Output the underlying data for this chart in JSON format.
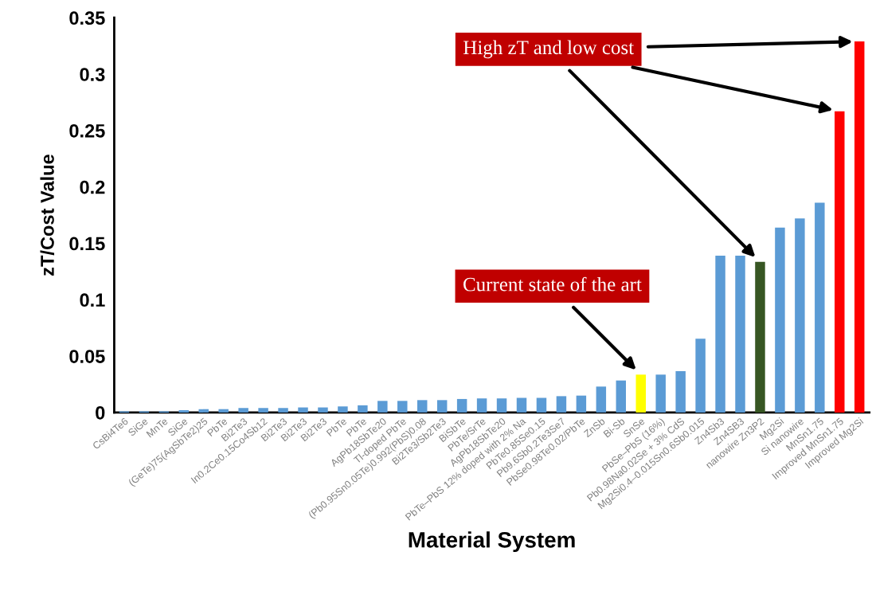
{
  "chart_data": {
    "type": "bar",
    "xlabel": "Material System",
    "ylabel": "zT/Cost Value",
    "categories": [
      "CsBi4Te6",
      "SiGe",
      "MnTe",
      "SiGe",
      "(GeTe)75(AgSbTe2)25",
      "PbTe",
      "Bi2Te3",
      "In0.2Ce0.15Co4Sb12",
      "Bi2Te3",
      "Bi2Te3",
      "Bi2Te3",
      "PbTe",
      "PbTe",
      "AgPb18SbTe20",
      "Tl-doped PbTe",
      "(Pb0.95Sn0.05Te)0.992(PbS)0.08",
      "Bi2Te3/Sb2Te3",
      "BiSbTe",
      "PbTe/SrTe",
      "AgPb18SbTe20",
      "PbTe–PbS 12% doped with 2% Na",
      "PbTe0.85Se0.15",
      "Pb9.6Sb0.2Te3Se7",
      "PbSe0.98Te0.02/PbTe",
      "ZnSb",
      "Bi-Sb",
      "SnSe",
      "PbSe–PbS (16%)",
      "Pb0.98Na0.02Se + 3% CdS",
      "Mg2Si0.4–0.015Sn0.6Sb0.015",
      "Zn4Sb3",
      "Zn4SB3",
      "nanowire Zn3P2",
      "Mg2Si",
      "Si nanowire",
      "MnSn1.75",
      "Improved MnSn1.75",
      "Improved Mg2Si"
    ],
    "values": [
      0.001,
      0.001,
      0.001,
      0.002,
      0.003,
      0.003,
      0.004,
      0.004,
      0.004,
      0.0045,
      0.0045,
      0.0054,
      0.0064,
      0.0103,
      0.0103,
      0.011,
      0.011,
      0.012,
      0.0125,
      0.0125,
      0.013,
      0.013,
      0.0145,
      0.015,
      0.023,
      0.0284,
      0.0336,
      0.0336,
      0.0367,
      0.0654,
      0.139,
      0.139,
      0.1335,
      0.164,
      0.172,
      0.186,
      0.267,
      0.329
    ],
    "colors": [
      "#5b9bd5",
      "#5b9bd5",
      "#5b9bd5",
      "#5b9bd5",
      "#5b9bd5",
      "#5b9bd5",
      "#5b9bd5",
      "#5b9bd5",
      "#5b9bd5",
      "#5b9bd5",
      "#5b9bd5",
      "#5b9bd5",
      "#5b9bd5",
      "#5b9bd5",
      "#5b9bd5",
      "#5b9bd5",
      "#5b9bd5",
      "#5b9bd5",
      "#5b9bd5",
      "#5b9bd5",
      "#5b9bd5",
      "#5b9bd5",
      "#5b9bd5",
      "#5b9bd5",
      "#5b9bd5",
      "#5b9bd5",
      "#ffff00",
      "#5b9bd5",
      "#5b9bd5",
      "#5b9bd5",
      "#5b9bd5",
      "#5b9bd5",
      "#375623",
      "#5b9bd5",
      "#5b9bd5",
      "#5b9bd5",
      "#ff0000",
      "#ff0000"
    ],
    "ylim": [
      0,
      0.35
    ],
    "yticks": [
      0,
      0.05,
      0.1,
      0.15,
      0.2,
      0.25,
      0.3,
      0.35
    ],
    "annotations": [
      "Current state of the art",
      "High zT and low cost"
    ]
  }
}
